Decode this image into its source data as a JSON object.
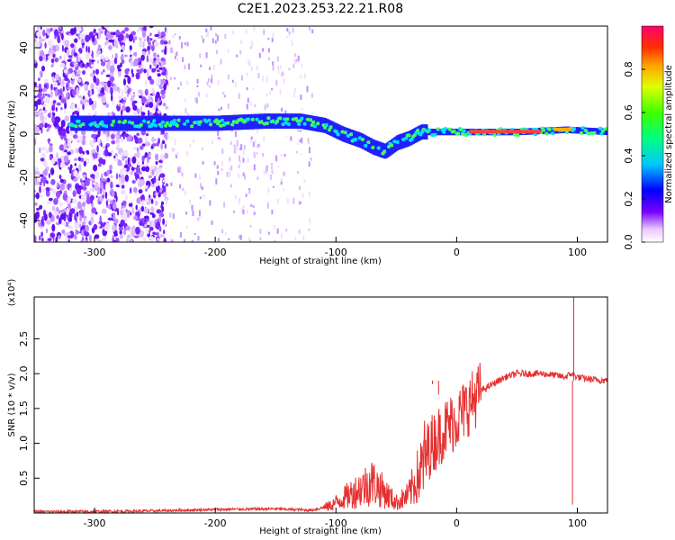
{
  "page_title": "C2E1.2023.253.22.21.R08",
  "chart_data": [
    {
      "type": "heatmap",
      "title": "C2E1.2023.253.22.21.R08",
      "xlabel": "Height of straight line (km)",
      "ylabel": "Frequency (Hz)",
      "xlim": [
        -350,
        125
      ],
      "ylim": [
        -50,
        50
      ],
      "xticks": [
        "-300",
        "-200",
        "-100",
        "0",
        "100"
      ],
      "yticks": [
        "-40",
        "-20",
        "0",
        "20",
        "40"
      ],
      "colorbar": {
        "label": "Normalized spectral amplitude",
        "range": [
          0,
          1
        ],
        "ticks": [
          "0.0",
          "0.2",
          "0.4",
          "0.6",
          "0.8"
        ]
      },
      "ridge_frequency_hz": {
        "x": [
          -320,
          -280,
          -240,
          -200,
          -160,
          -130,
          -110,
          -95,
          -80,
          -70,
          -60,
          -50,
          -40,
          -30,
          -20,
          0,
          50,
          90,
          125
        ],
        "y": [
          5,
          5,
          5,
          5,
          6,
          6,
          4,
          0,
          -3,
          -6,
          -8,
          -4,
          -2,
          1,
          1,
          1,
          1,
          2,
          1
        ]
      },
      "grid": false
    },
    {
      "type": "line",
      "xlabel": "Height of straight line (km)",
      "ylabel": "SNR (10 * v/v)",
      "y_multiplier": "(x10⁴)",
      "xlim": [
        -350,
        125
      ],
      "ylim": [
        0,
        3.1
      ],
      "xticks": [
        "-300",
        "-200",
        "-100",
        "0",
        "100"
      ],
      "yticks": [
        "0.5",
        "1.0",
        "1.5",
        "2.0",
        "2.5"
      ],
      "series_color": "#e53030",
      "x": [
        -350,
        -300,
        -250,
        -200,
        -150,
        -120,
        -105,
        -95,
        -80,
        -70,
        -60,
        -50,
        -40,
        -30,
        -25,
        -20,
        -10,
        0,
        10,
        20,
        30,
        40,
        50,
        60,
        70,
        80,
        90,
        95,
        100,
        110,
        125
      ],
      "y": [
        0.02,
        0.02,
        0.03,
        0.05,
        0.06,
        0.04,
        0.1,
        0.2,
        0.35,
        0.45,
        0.3,
        0.15,
        0.25,
        0.6,
        0.85,
        1.0,
        1.2,
        1.35,
        1.55,
        1.75,
        1.85,
        1.95,
        2.0,
        2.0,
        2.0,
        1.98,
        1.95,
        2.0,
        1.95,
        1.92,
        1.9
      ]
    }
  ],
  "spikes": [
    {
      "x": -32,
      "y": 1.9
    },
    {
      "x": -20,
      "y": 1.85
    },
    {
      "x": -15,
      "y": 1.7
    },
    {
      "x": 97,
      "y": 3.1
    },
    {
      "x": 96,
      "y": 0.12
    }
  ]
}
